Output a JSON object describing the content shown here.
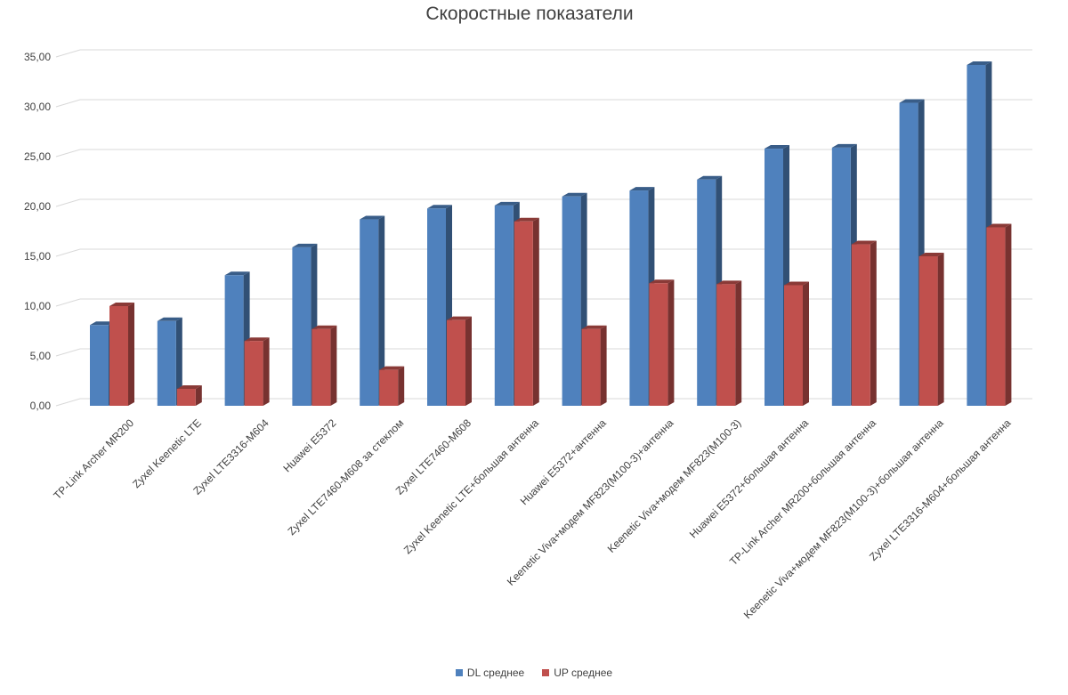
{
  "chart_data": {
    "type": "bar",
    "title": "Скоростные показатели",
    "xlabel": "",
    "ylabel": "",
    "ylim": [
      0,
      35
    ],
    "ytick_step": 5,
    "ytick_labels": [
      "0,00",
      "5,00",
      "10,00",
      "15,00",
      "20,00",
      "25,00",
      "30,00",
      "35,00"
    ],
    "grid": true,
    "legend_position": "bottom",
    "categories": [
      "TP-Link Archer MR200",
      "Zyxel Keenetic LTE",
      "Zyxel LTE3316-M604",
      "Huawei E5372",
      "Zyxel LTE7460-M608 за стеклом",
      "Zyxel LTE7460-M608",
      "Zyxel Keenetic LTE+большая антенна",
      "Huawei E5372+антенна",
      "Keenetic Viva+модем MF823(M100-3)+антенна",
      "Keenetic Viva+модем MF823(M100-3)",
      "Huawei E5372+большая антенна",
      "TP-Link Archer MR200+большая антенна",
      "Keenetic Viva+модем MF823(M100-3)+большая антенна",
      "Zyxel LTE3316-M604+большая антенна"
    ],
    "series": [
      {
        "name": "DL среднее",
        "color": "#4F81BD",
        "values": [
          8.1,
          8.5,
          13.1,
          15.9,
          18.7,
          19.8,
          20.1,
          21.0,
          21.6,
          22.7,
          25.8,
          25.9,
          30.4,
          34.2
        ]
      },
      {
        "name": "UP среднее",
        "color": "#C0504D",
        "values": [
          10.0,
          1.7,
          6.5,
          7.7,
          3.6,
          8.6,
          18.5,
          7.7,
          12.3,
          12.2,
          12.1,
          16.2,
          15.0,
          17.9
        ]
      }
    ]
  }
}
